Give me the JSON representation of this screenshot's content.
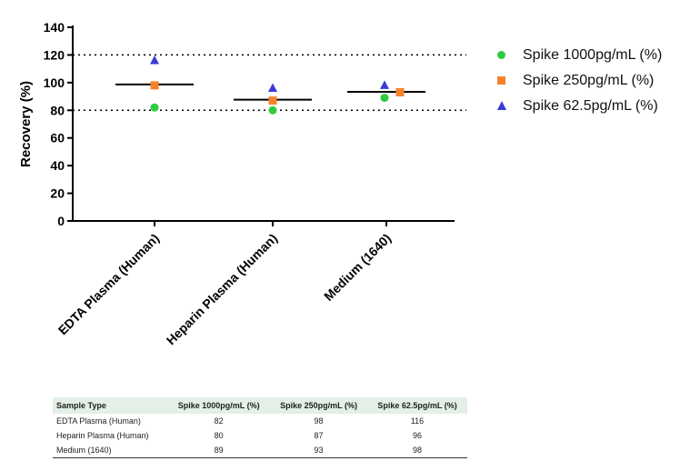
{
  "chart_data": {
    "type": "scatter",
    "title": "",
    "ylabel": "Recovery (%)",
    "xlabel": "",
    "ylim": [
      0,
      140
    ],
    "yticks": [
      "0",
      "20",
      "40",
      "60",
      "80",
      "100",
      "120",
      "140"
    ],
    "categories": [
      "EDTA Plasma (Human)",
      "Heparin Plasma (Human)",
      "Medium (1640)"
    ],
    "series": [
      {
        "name": "Spike 1000pg/mL (%)",
        "marker": "circle",
        "color": "#2ecc40",
        "values": [
          82,
          80,
          89
        ]
      },
      {
        "name": "Spike 250pg/mL (%)",
        "marker": "square",
        "color": "#f5822a",
        "values": [
          98,
          87,
          93
        ]
      },
      {
        "name": "Spike 62.5pg/mL (%)",
        "marker": "triangle",
        "color": "#3a3ad6",
        "values": [
          116,
          96,
          98
        ]
      }
    ],
    "means": [
      98.7,
      87.7,
      93.3
    ],
    "reference_lines": [
      80,
      120
    ],
    "legend_position": "right",
    "grid": false
  },
  "table": {
    "headers": [
      "Sample Type",
      "Spike 1000pg/mL (%)",
      "Spike 250pg/mL (%)",
      "Spike 62.5pg/mL (%)"
    ],
    "rows": [
      [
        "EDTA Plasma (Human)",
        "82",
        "98",
        "116"
      ],
      [
        "Heparin Plasma (Human)",
        "80",
        "87",
        "96"
      ],
      [
        "Medium (1640)",
        "89",
        "93",
        "98"
      ]
    ]
  }
}
